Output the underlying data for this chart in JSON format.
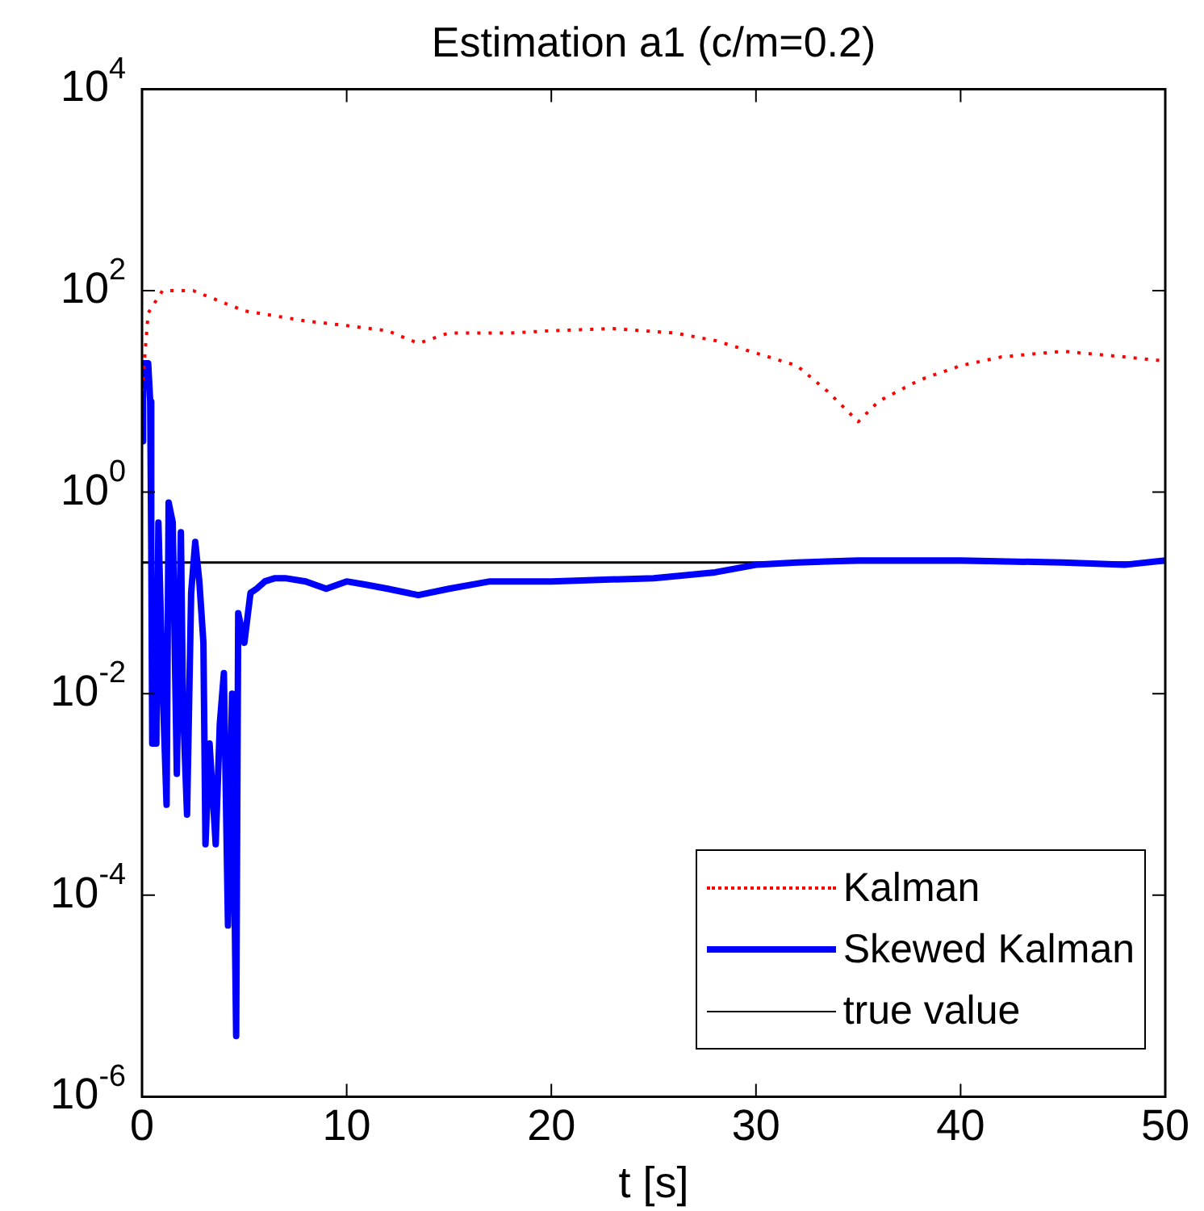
{
  "chart_data": {
    "type": "line",
    "title": "Estimation a1 (c/m=0.2)",
    "xlabel": "t [s]",
    "xlim": [
      0,
      50
    ],
    "xticks": [
      0,
      10,
      20,
      30,
      40,
      50
    ],
    "ylim": [
      1e-06,
      10000.0
    ],
    "yticks": [
      {
        "value": 1e-06,
        "label": "10$^{-6}$"
      },
      {
        "value": 0.0001,
        "label": "10$^{-4}$"
      },
      {
        "value": 0.01,
        "label": "10$^{-2}$"
      },
      {
        "value": 1,
        "label": "10$^{0}$"
      },
      {
        "value": 100,
        "label": "10$^{2}$"
      },
      {
        "value": 10000,
        "label": "10$^{4}$"
      }
    ],
    "log": "y",
    "grid": false,
    "legend": "bottom right",
    "marker": "none",
    "series": [
      {
        "name": "Kalman",
        "color": "#ff0000",
        "line_style": "dotted",
        "x": [
          0,
          0.3,
          1,
          2.5,
          5,
          8,
          10,
          12,
          13.5,
          15,
          18,
          20,
          23,
          26,
          28,
          30,
          32,
          33.5,
          35,
          36,
          38,
          40,
          42,
          45,
          48,
          50
        ],
        "values": [
          10,
          60,
          100,
          100,
          63,
          50,
          45,
          40,
          30,
          38,
          38,
          40,
          42,
          38,
          32,
          24,
          18,
          10,
          5,
          8,
          13,
          18,
          22,
          25,
          22,
          20
        ]
      },
      {
        "name": "Skewed Kalman",
        "color": "#0000ff",
        "line_style": "solid",
        "x": [
          0,
          0.05,
          0.3,
          0.4,
          0.45,
          0.5,
          0.7,
          0.8,
          1.0,
          1.2,
          1.3,
          1.5,
          1.7,
          1.9,
          2.0,
          2.2,
          2.4,
          2.6,
          2.8,
          3.0,
          3.1,
          3.3,
          3.6,
          3.8,
          4.0,
          4.2,
          4.4,
          4.6,
          4.7,
          5.0,
          5.3,
          5.6,
          6.0,
          6.5,
          7,
          8,
          9,
          10,
          11,
          12,
          13.5,
          15,
          17,
          20,
          25,
          28,
          30,
          32,
          35,
          40,
          45,
          48,
          50
        ],
        "values": [
          3.2,
          19,
          19,
          7.9,
          0.32,
          0.0032,
          0.0032,
          0.5,
          0.013,
          0.00079,
          0.79,
          0.5,
          0.0016,
          0.4,
          0.0079,
          0.00063,
          0.1,
          0.32,
          0.13,
          0.032,
          0.00032,
          0.0032,
          0.00032,
          0.005,
          0.016,
          5e-05,
          0.01,
          4e-06,
          0.063,
          0.032,
          0.1,
          0.11,
          0.13,
          0.14,
          0.14,
          0.13,
          0.11,
          0.13,
          0.12,
          0.11,
          0.095,
          0.11,
          0.13,
          0.13,
          0.14,
          0.16,
          0.19,
          0.2,
          0.21,
          0.21,
          0.2,
          0.19,
          0.21
        ]
      },
      {
        "name": "true value",
        "color": "#000000",
        "line_style": "solid",
        "x": [
          0,
          50
        ],
        "values": [
          0.2,
          0.2
        ]
      }
    ]
  }
}
